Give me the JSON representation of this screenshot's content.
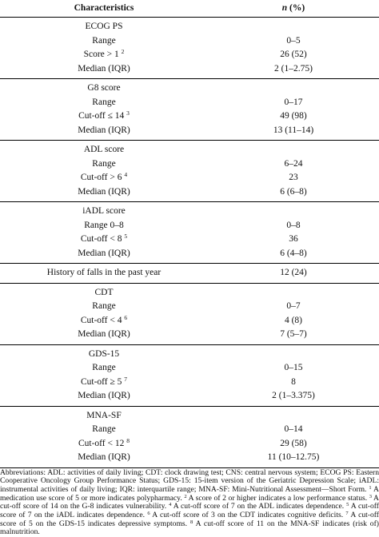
{
  "header": {
    "characteristic": "Characteristics",
    "n": "n",
    "pct": "(%)"
  },
  "groups": [
    {
      "title": "ECOG PS",
      "rows": [
        {
          "label": "Range",
          "value": "0–5"
        },
        {
          "label": "Score > 1",
          "sup": "2",
          "value": "26 (52)"
        },
        {
          "label": "Median (IQR)",
          "value": "2 (1–2.75)"
        }
      ]
    },
    {
      "title": "G8 score",
      "rows": [
        {
          "label": "Range",
          "value": "0–17"
        },
        {
          "label": "Cut-off ≤ 14",
          "sup": "3",
          "value": "49 (98)"
        },
        {
          "label": "Median (IQR)",
          "value": "13 (11–14)"
        }
      ]
    },
    {
      "title": "ADL score",
      "rows": [
        {
          "label": "Range",
          "value": "6–24"
        },
        {
          "label": "Cut-off > 6",
          "sup": "4",
          "value": "23"
        },
        {
          "label": "Median (IQR)",
          "value": "6 (6–8)"
        }
      ]
    },
    {
      "title": "iADL score",
      "rows": [
        {
          "label": "Range 0–8",
          "value": "0–8"
        },
        {
          "label": "Cut-off < 8",
          "sup": "5",
          "value": "36"
        },
        {
          "label": "Median (IQR)",
          "value": "6 (4–8)"
        }
      ]
    },
    {
      "rows": [
        {
          "label": "History of falls in the past year",
          "value": "12 (24)"
        }
      ]
    },
    {
      "title": "CDT",
      "rows": [
        {
          "label": "Range",
          "value": "0–7"
        },
        {
          "label": "Cut-off < 4",
          "sup": "6",
          "value": "4 (8)"
        },
        {
          "label": "Median (IQR)",
          "value": "7 (5–7)"
        }
      ]
    },
    {
      "title": "GDS-15",
      "rows": [
        {
          "label": "Range",
          "value": "0–15"
        },
        {
          "label": "Cut-off ≥ 5",
          "sup": "7",
          "value": "8"
        },
        {
          "label": "Median (IQR)",
          "value": "2 (1–3.375)"
        }
      ]
    },
    {
      "title": "MNA-SF",
      "rows": [
        {
          "label": "Range",
          "value": "0–14"
        },
        {
          "label": "Cut-off < 12",
          "sup": "8",
          "value": "29 (58)"
        },
        {
          "label": "Median (IQR)",
          "value": "11 (10–12.75)"
        }
      ]
    }
  ],
  "footnote": [
    {
      "text": "Abbreviations: ADL: activities of daily living; CDT: clock drawing test; CNS: central nervous system; ECOG PS: Eastern Cooperative Oncology Group Performance Status; GDS-15: 15-item version of the Geriatric Depression Scale; iADL: instrumental activities of daily living; IQR: interquartile range; MNA-SF: Mini-Nutritional Assessment—Short Form. "
    },
    {
      "sup": "1"
    },
    {
      "text": " A medication use score of 5 or more indicates polypharmacy. "
    },
    {
      "sup": "2"
    },
    {
      "text": " A score of 2 or higher indicates a low performance status. "
    },
    {
      "sup": "3"
    },
    {
      "text": " A cut-off score of 14 on the G-8 indicates vulnerability. "
    },
    {
      "sup": "4"
    },
    {
      "text": " A cut-off score of 7 on the ADL indicates dependence. "
    },
    {
      "sup": "5"
    },
    {
      "text": " A cut-off score of 7 on the iADL indicates dependence. "
    },
    {
      "sup": "6"
    },
    {
      "text": " A cut-off score of 3 on the CDT indicates cognitive deficits. "
    },
    {
      "sup": "7"
    },
    {
      "text": " A cut-off score of 5 on the GDS-15 indicates depressive symptoms. "
    },
    {
      "sup": "8"
    },
    {
      "text": " A cut-off score of 11 on the MNA-SF indicates (risk of) malnutrition."
    }
  ]
}
